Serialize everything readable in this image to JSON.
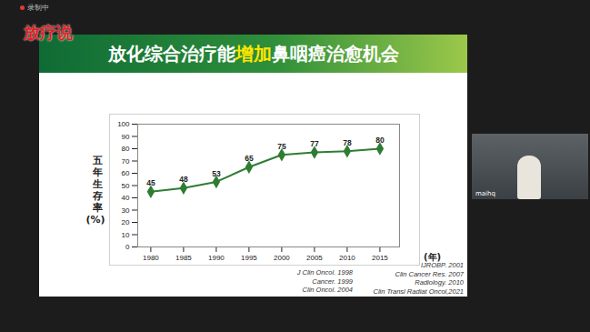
{
  "chart_data": {
    "type": "line",
    "title": "放化综合治疗能增加鼻咽癌治愈机会",
    "title_highlight": "增加",
    "x_label": "(年)",
    "y_label": "五年生存率(%)",
    "x": [
      1980,
      1985,
      1990,
      1995,
      2000,
      2005,
      2010,
      2015
    ],
    "values": [
      45,
      48,
      53,
      65,
      75,
      77,
      78,
      80
    ],
    "color": "#2e7d32",
    "marker": "diamond",
    "data_labels": true,
    "grid": false,
    "xlim": [
      1978,
      2018
    ],
    "xticks": [
      1980,
      1985,
      1990,
      1995,
      2000,
      2005,
      2010,
      2015
    ],
    "ylim": [
      0,
      100
    ],
    "yticks": [
      0,
      10,
      20,
      30,
      40,
      50,
      60,
      70,
      80,
      90,
      100
    ]
  },
  "page": {
    "logo": "放疗说",
    "recording": "录制中",
    "participant": "maihq",
    "references": [
      [
        "J Clin Oncol. 1998",
        "Cancer. 1999",
        "Clin Oncol. 2004"
      ],
      [
        "IJROBP. 2001",
        "Clin Cancer Res. 2007",
        "Radiology. 2010",
        "Clin Transl Radiat Oncol,2021"
      ]
    ]
  }
}
